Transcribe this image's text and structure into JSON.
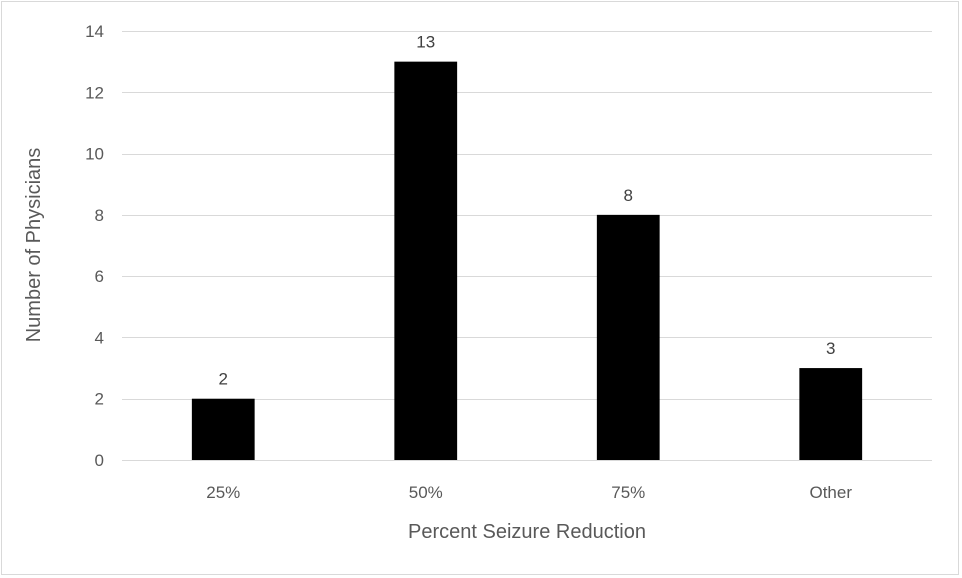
{
  "chart_data": {
    "type": "bar",
    "title": "",
    "xlabel": "Percent Seizure Reduction",
    "ylabel": "Number of Physicians",
    "categories": [
      "25%",
      "50%",
      "75%",
      "Other"
    ],
    "values": [
      2,
      13,
      8,
      3
    ],
    "data_labels": [
      "2",
      "13",
      "8",
      "3"
    ],
    "ylim": [
      0,
      14
    ],
    "yticks": [
      0,
      2,
      4,
      6,
      8,
      10,
      12,
      14
    ],
    "grid": true,
    "legend": "none",
    "bar_color": "#000000"
  }
}
